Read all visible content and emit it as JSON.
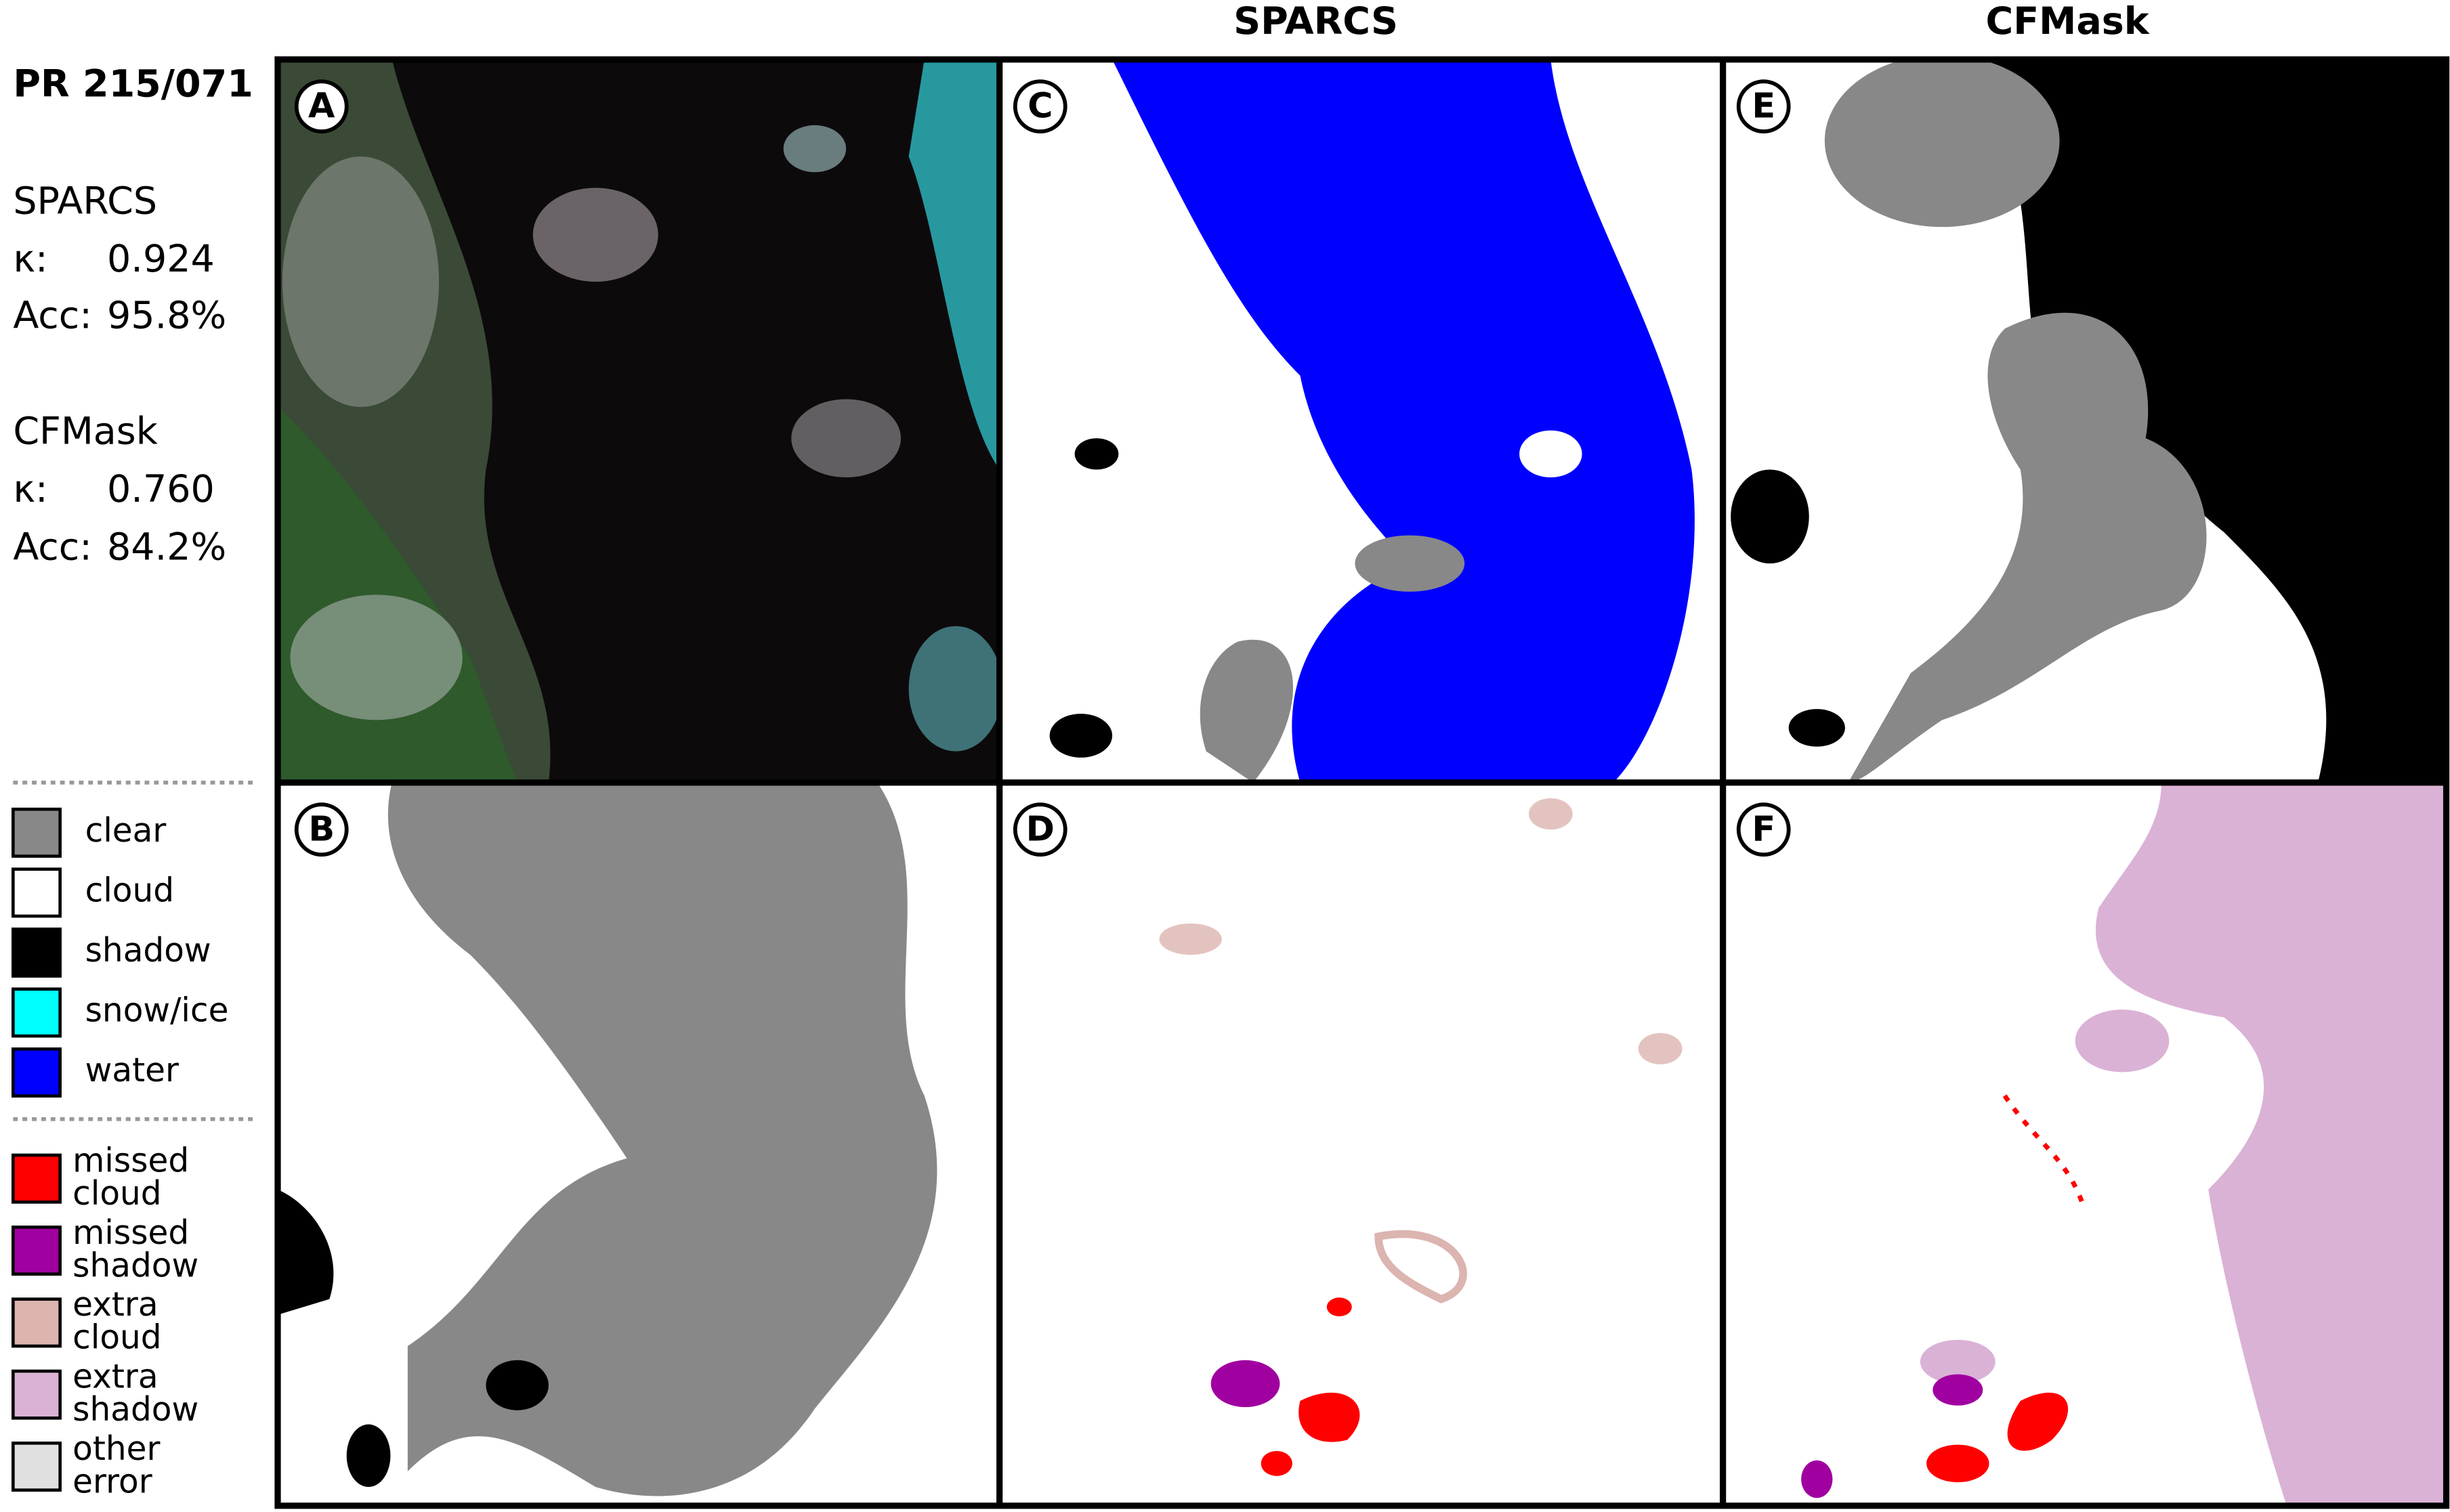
{
  "header": {
    "title": "PR 215/071"
  },
  "stats": [
    {
      "method": "SPARCS",
      "kappa_label": "κ:",
      "kappa": "0.924",
      "acc_label": "Acc:",
      "acc": "95.8%"
    },
    {
      "method": "CFMask",
      "kappa_label": "κ:",
      "kappa": "0.760",
      "acc_label": "Acc:",
      "acc": "84.2%"
    }
  ],
  "column_headers": [
    "SPARCS",
    "CFMask"
  ],
  "panels": [
    "A",
    "B",
    "C",
    "D",
    "E",
    "F"
  ],
  "legend": {
    "classes": [
      [
        "clear"
      ],
      [
        "cloud"
      ],
      [
        "shadow"
      ],
      [
        "snow/ice"
      ],
      [
        "water"
      ]
    ],
    "errors": [
      [
        "missed",
        "cloud"
      ],
      [
        "missed",
        "shadow"
      ],
      [
        "extra",
        "cloud"
      ],
      [
        "extra",
        "shadow"
      ],
      [
        "other",
        "error"
      ]
    ]
  }
}
